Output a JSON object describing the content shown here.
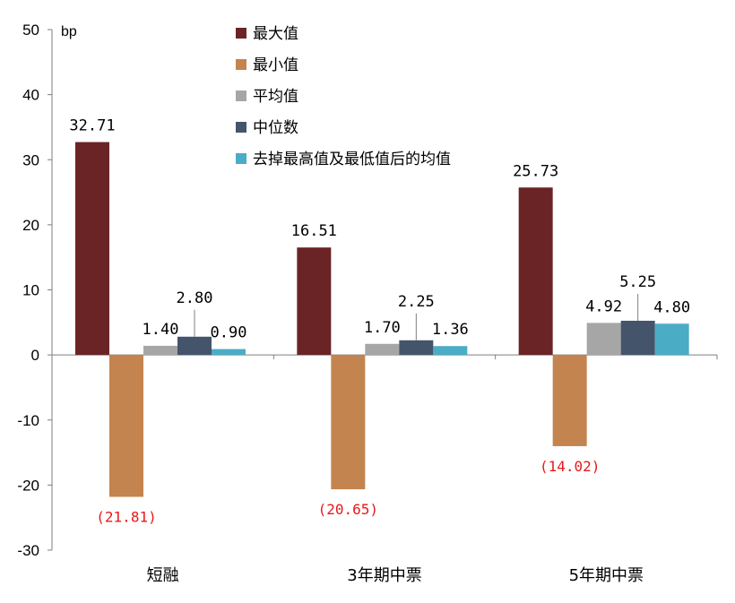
{
  "chart_data": {
    "type": "bar",
    "ylabel": "bp",
    "ylim": [
      -30,
      50
    ],
    "yticks": [
      -30,
      -20,
      -10,
      0,
      10,
      20,
      30,
      40,
      50
    ],
    "ytick_labels": [
      "-30",
      "-20",
      "-10",
      "0",
      "10",
      "20",
      "30",
      "40",
      "50"
    ],
    "categories": [
      "短融",
      "3年期中票",
      "5年期中票"
    ],
    "legend_position": "top-center",
    "grid": false,
    "series": [
      {
        "name": "最大值",
        "color": "#6b2426",
        "values": [
          32.71,
          16.51,
          25.73
        ],
        "labels": [
          "32.71",
          "16.51",
          "25.73"
        ]
      },
      {
        "name": "最小值",
        "color": "#c4844f",
        "values": [
          -21.81,
          -20.65,
          -14.02
        ],
        "labels": [
          "(21.81)",
          "(20.65)",
          "(14.02)"
        ]
      },
      {
        "name": "平均值",
        "color": "#a6a6a6",
        "values": [
          1.4,
          1.7,
          4.92
        ],
        "labels": [
          "1.40",
          "1.70",
          "4.92"
        ]
      },
      {
        "name": "中位数",
        "color": "#44546a",
        "values": [
          2.8,
          2.25,
          5.25
        ],
        "labels": [
          "2.80",
          "2.25",
          "5.25"
        ]
      },
      {
        "name": "去掉最高值及最低值后的均值",
        "color": "#4bacc6",
        "values": [
          0.9,
          1.36,
          4.8
        ],
        "labels": [
          "0.90",
          "1.36",
          "4.80"
        ]
      }
    ],
    "negative_label_color": "#e8191a"
  }
}
